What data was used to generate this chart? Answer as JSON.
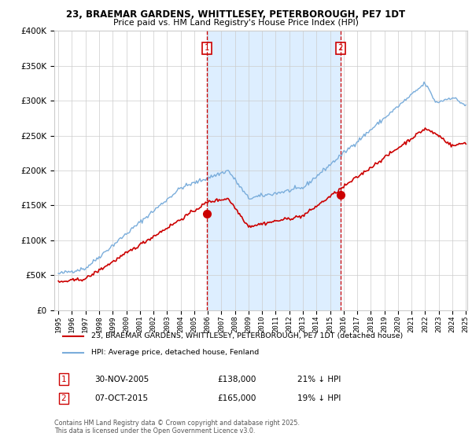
{
  "title": "23, BRAEMAR GARDENS, WHITTLESEY, PETERBOROUGH, PE7 1DT",
  "subtitle": "Price paid vs. HM Land Registry's House Price Index (HPI)",
  "legend_red": "23, BRAEMAR GARDENS, WHITTLESEY, PETERBOROUGH, PE7 1DT (detached house)",
  "legend_blue": "HPI: Average price, detached house, Fenland",
  "transaction1_date": "30-NOV-2005",
  "transaction1_price": "£138,000",
  "transaction1_hpi": "21% ↓ HPI",
  "transaction2_date": "07-OCT-2015",
  "transaction2_price": "£165,000",
  "transaction2_hpi": "19% ↓ HPI",
  "footnote": "Contains HM Land Registry data © Crown copyright and database right 2025.\nThis data is licensed under the Open Government Licence v3.0.",
  "red_color": "#cc0000",
  "blue_color": "#7aaddb",
  "shade_color": "#ddeeff",
  "grid_color": "#cccccc",
  "bg_color": "#ffffff",
  "ylim": [
    0,
    400000
  ],
  "yticks": [
    0,
    50000,
    100000,
    150000,
    200000,
    250000,
    300000,
    350000,
    400000
  ],
  "x_start_year": 1995,
  "x_end_year": 2025,
  "vline1_year": 2005.92,
  "vline2_year": 2015.77,
  "t1_price": 138000,
  "t2_price": 165000
}
